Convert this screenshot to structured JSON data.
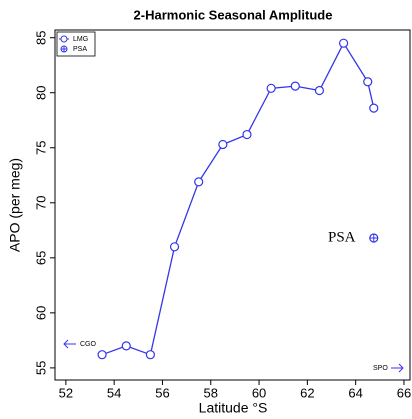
{
  "chart_data": {
    "type": "line",
    "title": "2-Harmonic Seasonal Amplitude",
    "x_label": "Latitude °S",
    "y_label": "APO (per meg)",
    "series": [
      {
        "name": "LMG",
        "color": "#3535e8",
        "marker": "circle",
        "x": [
          53.5,
          54.5,
          55.5,
          56.5,
          57.5,
          58.5,
          59.5,
          60.5,
          61.5,
          62.5,
          63.5,
          64.5,
          64.75
        ],
        "values": [
          56.2,
          57.0,
          56.2,
          66.0,
          71.9,
          75.3,
          76.2,
          80.4,
          80.6,
          80.2,
          84.5,
          81.0,
          78.6
        ]
      },
      {
        "name": "PSA",
        "color": "#3535e8",
        "marker": "circle-plus",
        "x": [
          64.75
        ],
        "values": [
          66.8
        ]
      }
    ],
    "annotations": [
      "PSA",
      "CGO",
      "SPO"
    ],
    "xlim": [
      51.55,
      66.25
    ],
    "xticks": [
      52,
      54,
      56,
      58,
      60,
      62,
      64,
      66
    ],
    "ylim": [
      53.9,
      85.7
    ],
    "yticks": [
      55,
      60,
      65,
      70,
      75,
      80,
      85
    ],
    "legend": "top-left"
  }
}
